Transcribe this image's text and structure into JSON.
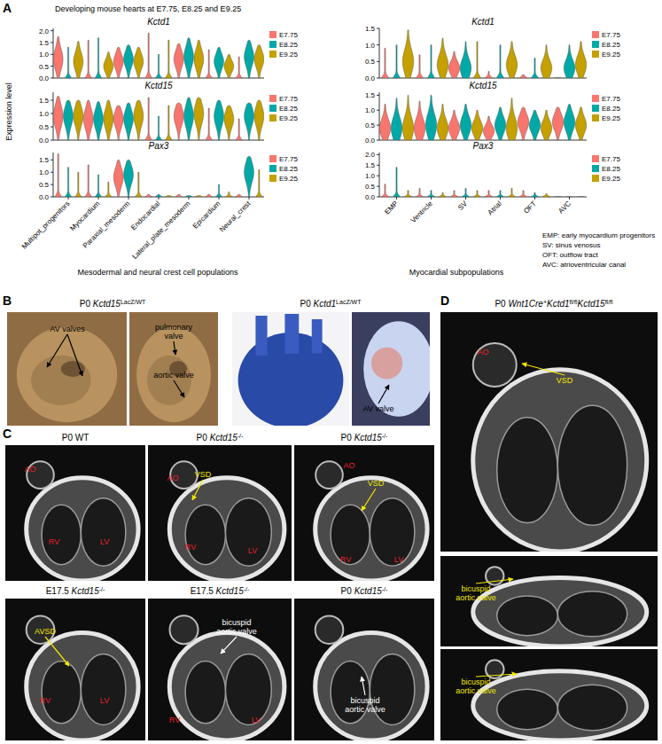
{
  "panel_a": {
    "label": "A",
    "title": "Developing mouse hearts at E7.75, E8.25 and E9.25",
    "y_label": "Expression level",
    "x_labels": [
      "Mesodermal and neural crest cell populations",
      "Myocardial subpopulations"
    ],
    "abbreviations": [
      "EMP: early myocardium progenitors",
      "SV: sinus venosus",
      "OFT: outflow tract",
      "AVC: atrioventricular canal"
    ]
  },
  "chart_data": [
    {
      "type": "violin",
      "title": "Kctd1",
      "categories": [
        "Multipot_progenitors",
        "Myocardium",
        "Paraxial_mesoderm",
        "Endocardial",
        "Lateral_plate_mesoderm",
        "Epicardium",
        "Neural_crest"
      ],
      "series": [
        {
          "name": "E7.75",
          "color": "#F8766D",
          "values": [
            1.75,
            1.6,
            1.3,
            1.9,
            1.45,
            1.2,
            0.9
          ],
          "medians": [
            0.8,
            0,
            0.7,
            0,
            0.8,
            0,
            0
          ]
        },
        {
          "name": "E8.25",
          "color": "#00A9A6",
          "values": [
            1.3,
            1.7,
            1.4,
            1.0,
            1.7,
            1.3,
            1.6
          ],
          "medians": [
            0,
            0,
            0.8,
            0,
            0.9,
            0.7,
            0.9
          ]
        },
        {
          "name": "E9.25",
          "color": "#C4A000",
          "values": [
            1.55,
            1.1,
            1.3,
            1.6,
            1.6,
            1.0,
            1.4
          ],
          "medians": [
            0.7,
            0.5,
            0.7,
            0,
            0.8,
            0.5,
            0.8
          ]
        }
      ],
      "ylim": [
        0,
        2.1
      ],
      "yticks": [
        {
          "value": 0,
          "label": "0.0"
        },
        0.5,
        {
          "value": 1,
          "label": "1.0"
        },
        1.5,
        {
          "value": 2,
          "label": "2.0"
        }
      ],
      "legend": "right",
      "tick_labels": "y"
    },
    {
      "type": "violin",
      "title": "Kctd15",
      "categories": [
        "Multipot_progenitors",
        "Myocardium",
        "Paraxial_mesoderm",
        "Endocardial",
        "Lateral_plate_mesoderm",
        "Epicardium",
        "Neural_crest"
      ],
      "series": [
        {
          "name": "E7.75",
          "color": "#F8766D",
          "values": [
            1.65,
            1.5,
            1.3,
            1.6,
            1.4,
            1.2,
            0.8
          ],
          "medians": [
            0.9,
            0.8,
            0.8,
            0,
            0.9,
            0,
            0
          ]
        },
        {
          "name": "E8.25",
          "color": "#00A9A6",
          "values": [
            1.5,
            1.45,
            1.4,
            0.9,
            1.6,
            1.5,
            1.4
          ],
          "medians": [
            0.9,
            0.8,
            0.8,
            0,
            0.9,
            0.9,
            0.9
          ]
        },
        {
          "name": "E9.25",
          "color": "#C4A000",
          "values": [
            1.5,
            1.5,
            1.5,
            1.3,
            1.6,
            1.3,
            1.5
          ],
          "medians": [
            0.9,
            0.8,
            0.9,
            0,
            1.0,
            0.8,
            0.9
          ]
        }
      ],
      "ylim": [
        0,
        1.8
      ],
      "yticks": [
        {
          "value": 0,
          "label": "0.0"
        },
        0.5,
        {
          "value": 1,
          "label": "1.0"
        },
        1.5
      ],
      "legend": "right",
      "tick_labels": "y"
    },
    {
      "type": "violin",
      "title": "Pax3",
      "categories": [
        "Multipot_progenitors",
        "Myocardium",
        "Paraxial_mesoderm",
        "Endocardial",
        "Lateral_plate_mesoderm",
        "Epicardium",
        "Neural_crest"
      ],
      "series": [
        {
          "name": "E7.75",
          "color": "#F8766D",
          "values": [
            1.75,
            1.3,
            1.5,
            0.1,
            0.1,
            0.1,
            0.1
          ],
          "medians": [
            0,
            0,
            0.8,
            0,
            0,
            0,
            0
          ]
        },
        {
          "name": "E8.25",
          "color": "#00A9A6",
          "values": [
            1.2,
            0.9,
            1.5,
            0.1,
            0.05,
            0.5,
            1.65
          ],
          "medians": [
            0,
            0,
            0.9,
            0,
            0,
            0,
            1.0
          ]
        },
        {
          "name": "E9.25",
          "color": "#C4A000",
          "values": [
            1.0,
            0.6,
            1.0,
            0.05,
            0.05,
            0.2,
            1.1
          ],
          "medians": [
            0,
            0,
            0,
            0,
            0,
            0,
            0
          ]
        }
      ],
      "ylim": [
        0,
        1.8
      ],
      "yticks": [
        {
          "value": 0,
          "label": "0.0"
        },
        0.5,
        {
          "value": 1,
          "label": "1.0"
        },
        1.5
      ],
      "legend": "right",
      "tick_labels": true
    },
    {
      "type": "violin",
      "title": "Kctd1",
      "categories": [
        "EMP",
        "Ventricle",
        "SV",
        "Atrial",
        "OFT",
        "AVC"
      ],
      "series": [
        {
          "name": "E7.75",
          "color": "#F8766D",
          "values": [
            0.9,
            0.7,
            0.8,
            0.2,
            0.1,
            0
          ],
          "medians": [
            0,
            0,
            0.3,
            0,
            0,
            0
          ]
        },
        {
          "name": "E8.25",
          "color": "#00A9A6",
          "values": [
            1.0,
            1.0,
            1.1,
            1.0,
            0.6,
            1.0
          ],
          "medians": [
            0,
            0,
            0.3,
            0,
            0,
            0.3
          ]
        },
        {
          "name": "E9.25",
          "color": "#C4A000",
          "values": [
            1.45,
            1.2,
            1.1,
            1.1,
            1.0,
            1.1
          ],
          "medians": [
            0.5,
            0.4,
            0,
            0.4,
            0.3,
            0.4
          ]
        }
      ],
      "ylim": [
        0,
        1.5
      ],
      "yticks": [
        {
          "value": 0,
          "label": "0.0"
        },
        0.5,
        {
          "value": 1,
          "label": "1.0"
        },
        1.5
      ],
      "legend": "right",
      "tick_labels": "y"
    },
    {
      "type": "violin",
      "title": "Kctd15",
      "categories": [
        "EMP",
        "Ventricle",
        "SV",
        "Atrial",
        "OFT",
        "AVC"
      ],
      "series": [
        {
          "name": "E7.75",
          "color": "#F8766D",
          "values": [
            1.2,
            1.3,
            1.0,
            0.8,
            1.1,
            1.1
          ],
          "medians": [
            0.4,
            0.4,
            0.4,
            0.3,
            0.6,
            0.6
          ]
        },
        {
          "name": "E8.25",
          "color": "#00A9A6",
          "values": [
            1.4,
            1.5,
            1.2,
            1.1,
            1.0,
            1.2
          ],
          "medians": [
            0.4,
            0.5,
            0.5,
            0.5,
            0.5,
            0.6
          ]
        },
        {
          "name": "E9.25",
          "color": "#C4A000",
          "values": [
            1.5,
            1.2,
            1.0,
            1.4,
            1.0,
            1.1
          ],
          "medians": [
            0.4,
            0.4,
            0.4,
            0.4,
            0.4,
            0.5
          ]
        }
      ],
      "ylim": [
        0,
        1.6
      ],
      "yticks": [
        {
          "value": 0,
          "label": "0.0"
        },
        0.5,
        {
          "value": 1,
          "label": "1.0"
        },
        1.5
      ],
      "legend": "right",
      "tick_labels": "y"
    },
    {
      "type": "violin",
      "title": "Pax3",
      "categories": [
        "EMP",
        "Ventricle",
        "SV",
        "Atrial",
        "OFT",
        "AVC"
      ],
      "series": [
        {
          "name": "E7.75",
          "color": "#F8766D",
          "values": [
            0.6,
            0.4,
            0.3,
            0.3,
            0.3,
            0
          ],
          "medians": [
            0,
            0,
            0,
            0,
            0,
            0
          ]
        },
        {
          "name": "E8.25",
          "color": "#00A9A6",
          "values": [
            1.4,
            0.3,
            0.4,
            0.3,
            0.2,
            0
          ],
          "medians": [
            0,
            0,
            0,
            0,
            0,
            0
          ]
        },
        {
          "name": "E9.25",
          "color": "#C4A000",
          "values": [
            0.3,
            0.2,
            0.3,
            0.4,
            0.15,
            0
          ],
          "medians": [
            0,
            0,
            0,
            0,
            0,
            0
          ]
        }
      ],
      "ylim": [
        0,
        2.1
      ],
      "yticks": [
        {
          "value": 0,
          "label": "0.0"
        },
        0.5,
        {
          "value": 1,
          "label": "1.0"
        },
        1.5,
        {
          "value": 2,
          "label": "2.0"
        }
      ],
      "legend": "right",
      "tick_labels": true
    }
  ],
  "panel_b": {
    "label": "B",
    "groups": [
      {
        "title": [
          {
            "text": "P0 "
          },
          {
            "text": "Kctd15"
          },
          {
            "text": "LacZ/WT",
            "sup": true
          }
        ],
        "photos": [
          {
            "annotations": [
              {
                "text": "AV valves",
                "color": "#000000"
              }
            ]
          },
          {
            "annotations": [
              {
                "text": "pulmonary valve",
                "color": "#000000"
              },
              {
                "text": "aortic valve",
                "color": "#000000"
              }
            ]
          }
        ]
      },
      {
        "title": [
          {
            "text": "P0 "
          },
          {
            "text": "Kctd1"
          },
          {
            "text": "LacZ/WT",
            "sup": true
          }
        ],
        "photos": [
          {
            "annotations": []
          },
          {
            "annotations": [
              {
                "text": "AV valve",
                "color": "#000000"
              }
            ]
          }
        ]
      }
    ]
  },
  "panel_c": {
    "label": "C",
    "photos": [
      {
        "title": [
          {
            "text": "P0 WT"
          }
        ],
        "annotations": [
          {
            "text": "AO",
            "color": "#e8212a"
          },
          {
            "text": "RV",
            "color": "#e8212a"
          },
          {
            "text": "LV",
            "color": "#e8212a"
          }
        ]
      },
      {
        "title": [
          {
            "text": "P0 "
          },
          {
            "text": "Kctd15"
          },
          {
            "text": "-/-",
            "sup": true
          }
        ],
        "annotations": [
          {
            "text": "AO",
            "color": "#e8212a"
          },
          {
            "text": "VSD",
            "color": "#f2e600"
          },
          {
            "text": "RV",
            "color": "#e8212a"
          },
          {
            "text": "LV",
            "color": "#e8212a"
          }
        ]
      },
      {
        "title": [
          {
            "text": "P0 "
          },
          {
            "text": "Kctd15"
          },
          {
            "text": "-/-",
            "sup": true
          }
        ],
        "annotations": [
          {
            "text": "AO",
            "color": "#e8212a"
          },
          {
            "text": "VSD",
            "color": "#f2e600"
          },
          {
            "text": "RV",
            "color": "#e8212a"
          },
          {
            "text": "LV",
            "color": "#e8212a"
          }
        ]
      },
      {
        "title": [
          {
            "text": "E17.5 "
          },
          {
            "text": "Kctd15"
          },
          {
            "text": "-/-",
            "sup": true
          }
        ],
        "annotations": [
          {
            "text": "AVSD",
            "color": "#f2e600"
          },
          {
            "text": "RV",
            "color": "#e8212a"
          },
          {
            "text": "LV",
            "color": "#e8212a"
          }
        ]
      },
      {
        "title": [
          {
            "text": "E17.5 "
          },
          {
            "text": "Kctd15"
          },
          {
            "text": "-/-",
            "sup": true
          }
        ],
        "annotations": [
          {
            "text": "bicuspid aortic valve",
            "color": "#ffffff"
          },
          {
            "text": "RV",
            "color": "#e8212a"
          },
          {
            "text": "LV",
            "color": "#e8212a"
          }
        ]
      },
      {
        "title": [
          {
            "text": "P0 "
          },
          {
            "text": "Kctd15"
          },
          {
            "text": "-/-",
            "sup": true
          }
        ],
        "annotations": [
          {
            "text": "bicuspid aortic valve",
            "color": "#ffffff"
          }
        ]
      }
    ]
  },
  "panel_d": {
    "label": "D",
    "title": [
      {
        "text": "P0 "
      },
      {
        "text": "Wnt1Cre"
      },
      {
        "text": "+",
        "sup": true
      },
      {
        "text": "Kctd1"
      },
      {
        "text": "fl/fl",
        "sup": true
      },
      {
        "text": "Kctd15"
      },
      {
        "text": "fl/fl",
        "sup": true
      }
    ],
    "photos": [
      {
        "annotations": [
          {
            "text": "AO",
            "color": "#e8212a"
          },
          {
            "text": "VSD",
            "color": "#f2e600"
          }
        ]
      },
      {
        "annotations": [
          {
            "text": "bicuspid aortic valve",
            "color": "#f2e600"
          }
        ]
      },
      {
        "annotations": [
          {
            "text": "bicuspid aortic valve",
            "color": "#f2e600"
          }
        ]
      }
    ]
  }
}
